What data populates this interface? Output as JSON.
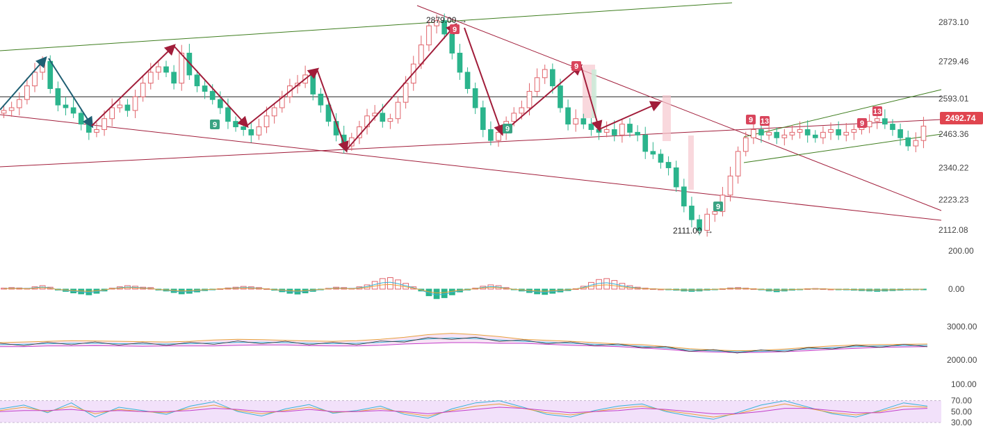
{
  "colors": {
    "up": "#e0636a",
    "down": "#2bb48c",
    "up_badge": "#d9455c",
    "down_badge": "#3aa383",
    "trend_red": "#a11d3a",
    "trend_green": "#3e7d1e",
    "teal_arrow": "#1f5f73",
    "hline": "#222222",
    "price_tag": "#e0454f",
    "ma_fast": "#36b4d6",
    "ma_slow": "#e8a23c",
    "ma_purple": "#c33ec9",
    "rsi_band": "#f2e1fa"
  },
  "chart_data": [
    {
      "type": "candlestick",
      "panel": "price",
      "y_ticks": [
        "2873.10",
        "2729.46",
        "2593.01",
        "2463.36",
        "2340.22",
        "2223.23",
        "2112.08"
      ],
      "ylim": [
        2112.08,
        2873.1
      ],
      "x_count": 120,
      "last_price": "2492.74",
      "annotations": {
        "high_label": "2879.00",
        "low_label": "2111.00",
        "hline_price": 2600
      },
      "closes": [
        2550,
        2560,
        2590,
        2640,
        2690,
        2730,
        2630,
        2570,
        2560,
        2540,
        2500,
        2470,
        2480,
        2520,
        2560,
        2570,
        2550,
        2600,
        2650,
        2690,
        2710,
        2690,
        2650,
        2760,
        2680,
        2640,
        2620,
        2590,
        2560,
        2510,
        2490,
        2480,
        2460,
        2490,
        2530,
        2560,
        2600,
        2640,
        2650,
        2680,
        2610,
        2570,
        2510,
        2460,
        2420,
        2450,
        2490,
        2530,
        2540,
        2510,
        2520,
        2580,
        2650,
        2720,
        2790,
        2860,
        2879,
        2830,
        2760,
        2690,
        2630,
        2560,
        2480,
        2440,
        2470,
        2510,
        2540,
        2560,
        2620,
        2670,
        2700,
        2640,
        2560,
        2500,
        2520,
        2500,
        2480,
        2470,
        2480,
        2460,
        2500,
        2470,
        2460,
        2400,
        2390,
        2360,
        2340,
        2270,
        2200,
        2150,
        2111,
        2170,
        2180,
        2240,
        2310,
        2400,
        2450,
        2480,
        2460,
        2470,
        2450,
        2460,
        2470,
        2480,
        2460,
        2450,
        2470,
        2480,
        2460,
        2470,
        2480,
        2490,
        2510,
        2520,
        2500,
        2480,
        2450,
        2420,
        2440,
        2492.74
      ]
    },
    {
      "type": "histogram",
      "panel": "macd",
      "y_ticks": [
        "200.00",
        "0.00"
      ],
      "ylim": [
        -100,
        200
      ],
      "values": [
        5,
        8,
        6,
        4,
        12,
        18,
        10,
        -5,
        -12,
        -20,
        -25,
        -30,
        -22,
        -10,
        5,
        12,
        18,
        15,
        10,
        8,
        -5,
        -10,
        -18,
        -25,
        -22,
        -15,
        -8,
        -4,
        2,
        6,
        10,
        14,
        12,
        8,
        2,
        -6,
        -14,
        -22,
        -26,
        -20,
        -12,
        -4,
        4,
        10,
        8,
        4,
        12,
        22,
        40,
        55,
        60,
        48,
        30,
        12,
        -10,
        -35,
        -50,
        -45,
        -30,
        -15,
        -5,
        5,
        15,
        22,
        18,
        8,
        -2,
        -10,
        -18,
        -25,
        -28,
        -22,
        -15,
        -8,
        2,
        15,
        35,
        50,
        55,
        45,
        30,
        18,
        10,
        5,
        2,
        0,
        -3,
        -6,
        -10,
        -12,
        -10,
        -6,
        -3,
        2,
        6,
        8,
        5,
        2,
        -4,
        -10,
        -14,
        -10,
        -6,
        -2,
        2,
        3,
        2,
        0,
        -2,
        -4,
        -6,
        -8,
        -10,
        -12,
        -10,
        -8,
        -6,
        -4,
        -2,
        -1
      ]
    },
    {
      "type": "line",
      "panel": "bands",
      "y_ticks": [
        "3000.00",
        "2000.00"
      ],
      "ylim": [
        1800,
        3200
      ],
      "series": [
        {
          "values": [
            2520,
            2540,
            2560,
            2580,
            2570,
            2560,
            2550,
            2540,
            2560,
            2600,
            2620,
            2610,
            2590,
            2570,
            2560,
            2580,
            2620,
            2680,
            2760,
            2800,
            2760,
            2700,
            2620,
            2590,
            2560,
            2520,
            2480,
            2460,
            2400,
            2340,
            2300,
            2280,
            2290,
            2330,
            2380,
            2420,
            2450,
            2460,
            2470,
            2480
          ]
        },
        {
          "values": [
            2460,
            2470,
            2490,
            2500,
            2500,
            2490,
            2480,
            2480,
            2490,
            2510,
            2530,
            2530,
            2520,
            2500,
            2490,
            2500,
            2530,
            2580,
            2630,
            2660,
            2640,
            2600,
            2560,
            2530,
            2500,
            2470,
            2440,
            2410,
            2360,
            2300,
            2270,
            2250,
            2260,
            2290,
            2330,
            2370,
            2400,
            2420,
            2430,
            2440
          ]
        },
        {
          "values": [
            2400,
            2400,
            2420,
            2420,
            2430,
            2420,
            2410,
            2420,
            2420,
            2420,
            2440,
            2450,
            2450,
            2430,
            2420,
            2420,
            2440,
            2480,
            2500,
            2520,
            2520,
            2500,
            2500,
            2470,
            2440,
            2420,
            2400,
            2360,
            2320,
            2260,
            2240,
            2220,
            2230,
            2250,
            2280,
            2320,
            2350,
            2380,
            2390,
            2400
          ]
        }
      ]
    },
    {
      "type": "line",
      "panel": "rsi",
      "y_ticks": [
        "100.00",
        "70.00",
        "50.00",
        "30.00"
      ],
      "ylim": [
        25,
        105
      ],
      "series": [
        {
          "values": [
            55,
            62,
            48,
            66,
            40,
            58,
            52,
            45,
            60,
            68,
            50,
            42,
            55,
            63,
            47,
            52,
            60,
            45,
            38,
            55,
            66,
            70,
            58,
            45,
            40,
            52,
            60,
            64,
            50,
            42,
            36,
            48,
            62,
            70,
            58,
            46,
            40,
            52,
            66,
            60
          ]
        },
        {
          "values": [
            52,
            58,
            50,
            60,
            46,
            54,
            50,
            48,
            56,
            62,
            52,
            46,
            52,
            58,
            49,
            50,
            56,
            48,
            42,
            52,
            60,
            64,
            56,
            48,
            44,
            50,
            56,
            60,
            52,
            46,
            40,
            46,
            56,
            64,
            56,
            48,
            44,
            50,
            60,
            58
          ]
        },
        {
          "values": [
            50,
            52,
            52,
            54,
            50,
            52,
            50,
            50,
            52,
            56,
            54,
            50,
            50,
            54,
            50,
            50,
            52,
            50,
            46,
            50,
            54,
            58,
            56,
            52,
            48,
            50,
            52,
            56,
            54,
            50,
            46,
            46,
            50,
            56,
            56,
            52,
            48,
            48,
            54,
            56
          ]
        }
      ]
    }
  ]
}
